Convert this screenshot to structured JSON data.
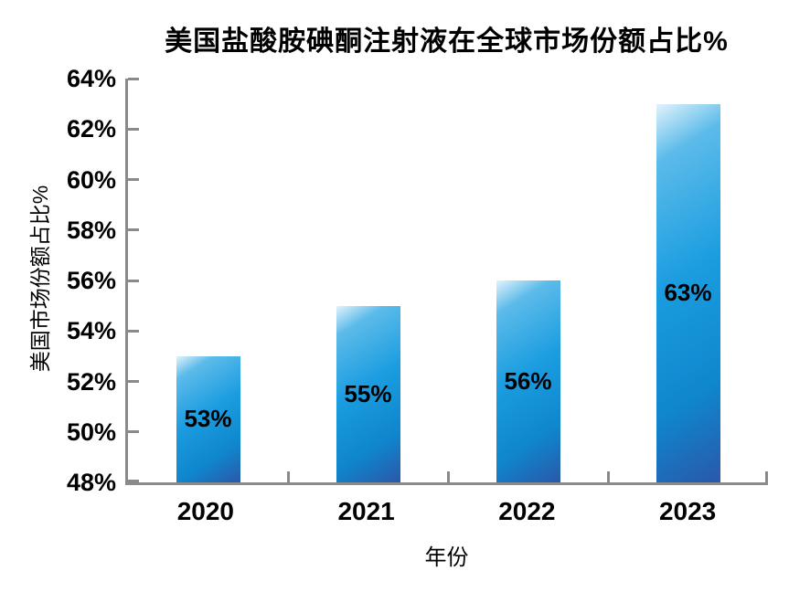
{
  "chart_data": {
    "type": "bar",
    "title": "美国盐酸胺碘酮注射液在全球市场份额占比%",
    "xlabel": "年份",
    "ylabel": "美国市场份额占比%",
    "categories": [
      "2020",
      "2021",
      "2022",
      "2023"
    ],
    "values": [
      53,
      55,
      56,
      63
    ],
    "data_labels": [
      "53%",
      "55%",
      "56%",
      "63%"
    ],
    "data_label_position": "inside-center",
    "ylim": [
      48,
      64
    ],
    "y_tick_values": [
      64,
      62,
      60,
      58,
      56,
      54,
      52,
      50,
      48
    ],
    "y_tick_labels": [
      "64%",
      "62%",
      "60%",
      "58%",
      "56%",
      "54%",
      "52%",
      "50%",
      "48%"
    ],
    "grid": false,
    "legend": false,
    "colors": {
      "bar_gradient_start": "#e2f3fc",
      "bar_gradient_mid": "#1b9de0",
      "bar_gradient_end": "#2a58a9",
      "axis": "#8a8a8a",
      "text": "#000000",
      "background": "#ffffff"
    }
  }
}
